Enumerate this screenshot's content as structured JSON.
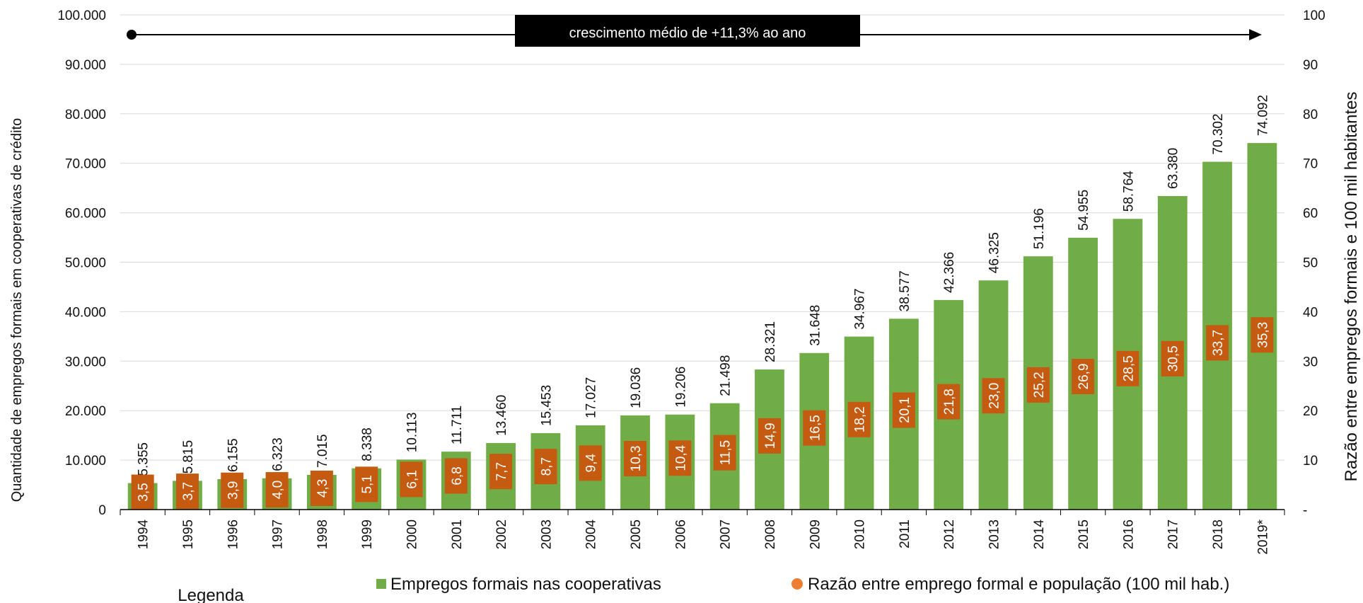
{
  "chart_data": {
    "type": "bar",
    "categories": [
      "1994",
      "1995",
      "1996",
      "1997",
      "1998",
      "1999",
      "2000",
      "2001",
      "2002",
      "2003",
      "2004",
      "2005",
      "2006",
      "2007",
      "2008",
      "2009",
      "2010",
      "2011",
      "2012",
      "2013",
      "2014",
      "2015",
      "2016",
      "2017",
      "2018",
      "2019*"
    ],
    "series": [
      {
        "name": "Empregos formais nas cooperativas",
        "axis": "left",
        "color": "#70ad47",
        "values": [
          5355,
          5815,
          6155,
          6323,
          7015,
          8338,
          10113,
          11711,
          13460,
          15453,
          17027,
          19036,
          19206,
          21498,
          28321,
          31648,
          34967,
          38577,
          42366,
          46325,
          51196,
          54955,
          58764,
          63380,
          70302,
          74092
        ],
        "labels": [
          "5.355",
          "5.815",
          "6.155",
          "6.323",
          "7.015",
          "8.338",
          "10.113",
          "11.711",
          "13.460",
          "15.453",
          "17.027",
          "19.036",
          "19.206",
          "21.498",
          "28.321",
          "31.648",
          "34.967",
          "38.577",
          "42.366",
          "46.325",
          "51.196",
          "54.955",
          "58.764",
          "63.380",
          "70.302",
          "74.092"
        ]
      },
      {
        "name": "Razão entre emprego formal e população (100 mil hab.)",
        "axis": "right",
        "color": "#c55a11",
        "legend_color": "#ed7d31",
        "values": [
          3.5,
          3.7,
          3.9,
          4.0,
          4.3,
          5.1,
          6.1,
          6.8,
          7.7,
          8.7,
          9.4,
          10.3,
          10.4,
          11.5,
          14.9,
          16.5,
          18.2,
          20.1,
          21.8,
          23.0,
          25.2,
          26.9,
          28.5,
          30.5,
          33.7,
          35.3
        ],
        "labels": [
          "3,5",
          "3,7",
          "3,9",
          "4,0",
          "4,3",
          "5,1",
          "6,1",
          "6,8",
          "7,7",
          "8,7",
          "9,4",
          "10,3",
          "10,4",
          "11,5",
          "14,9",
          "16,5",
          "18,2",
          "20,1",
          "21,8",
          "23,0",
          "25,2",
          "26,9",
          "28,5",
          "30,5",
          "33,7",
          "35,3"
        ]
      }
    ],
    "ylabel": "Quantidade  de empregos formais em cooperativas de crédito",
    "ylabel_right": "Razão entre empregos formais e 100 mil habitantes",
    "ylim": [
      0,
      100000
    ],
    "ylim_right": [
      0,
      100
    ],
    "yticks": [
      "0",
      "10.000",
      "20.000",
      "30.000",
      "40.000",
      "50.000",
      "60.000",
      "70.000",
      "80.000",
      "90.000",
      "100.000"
    ],
    "yticks_right": [
      "-",
      "10",
      "20",
      "30",
      "40",
      "50",
      "60",
      "70",
      "80",
      "90",
      "100"
    ],
    "grid": true,
    "annotation": "crescimento médio de +11,3% ao ano",
    "legend_title": "Legenda",
    "legend_placement": "bottom"
  }
}
